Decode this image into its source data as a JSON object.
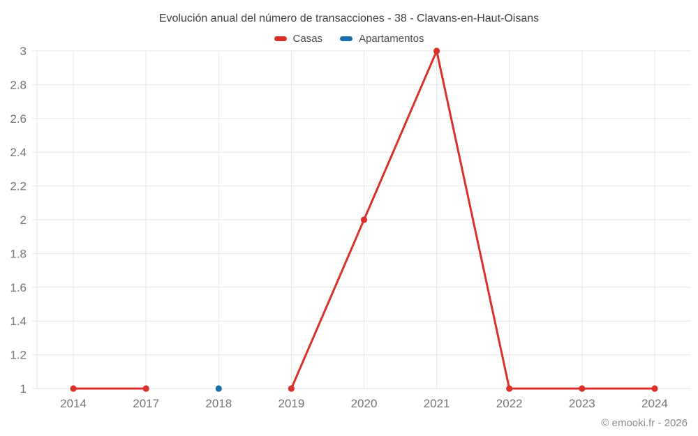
{
  "header": {
    "title": "Evolución anual del número de transacciones - 38 - Clavans-en-Haut-Oisans"
  },
  "legend": [
    {
      "label": "Casas",
      "color": "#d8312c"
    },
    {
      "label": "Apartamentos",
      "color": "#1b6ca8"
    }
  ],
  "footer": {
    "credit": "© emooki.fr - 2026"
  },
  "chart_data": {
    "type": "line",
    "title": "Evolución anual del número de transacciones - 38 - Clavans-en-Haut-Oisans",
    "categories": [
      "2014",
      "2017",
      "2018",
      "2019",
      "2020",
      "2021",
      "2022",
      "2023",
      "2024"
    ],
    "series": [
      {
        "name": "Casas",
        "color": "#d8312c",
        "values": [
          1,
          1,
          null,
          1,
          2,
          3,
          1,
          1,
          1
        ]
      },
      {
        "name": "Apartamentos",
        "color": "#1b6ca8",
        "values": [
          null,
          null,
          1,
          null,
          null,
          null,
          null,
          null,
          null
        ]
      }
    ],
    "xlabel": "",
    "ylabel": "",
    "yticks": [
      1,
      1.2,
      1.4,
      1.6,
      1.8,
      2,
      2.2,
      2.4,
      2.6,
      2.8,
      3
    ],
    "ylim": [
      1,
      3
    ],
    "grid": true,
    "grid_color": "#e6e6e6",
    "legend_position": "top"
  }
}
